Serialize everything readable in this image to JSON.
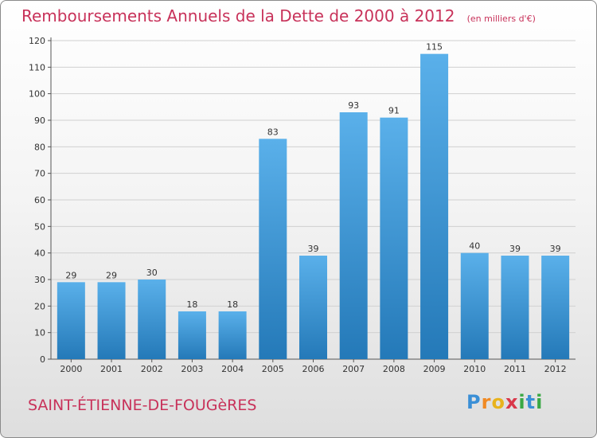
{
  "header": {
    "title": "Remboursements Annuels de la Dette de 2000 à 2012",
    "unit": "(en milliers d'€)"
  },
  "footer": {
    "place": "SAINT-ÉTIENNE-DE-FOUGèRES",
    "logo_letters": [
      "P",
      "r",
      "o",
      "x",
      "i",
      "t",
      "i"
    ],
    "logo_colors": [
      "#3a8fd6",
      "#f08a24",
      "#e8b31d",
      "#d9384a",
      "#3aa845",
      "#3a8fd6",
      "#3aa845"
    ]
  },
  "colors": {
    "bar_top": "#5ab0ea",
    "bar_bottom": "#2479b8",
    "grid": "#d0d0d0",
    "accent": "#c8325a"
  },
  "chart_data": {
    "type": "bar",
    "title": "Remboursements Annuels de la Dette de 2000 à 2012",
    "subtitle": "(en milliers d'€)",
    "categories": [
      "2000",
      "2001",
      "2002",
      "2003",
      "2004",
      "2005",
      "2006",
      "2007",
      "2008",
      "2009",
      "2010",
      "2011",
      "2012"
    ],
    "values": [
      29,
      29,
      30,
      18,
      18,
      83,
      39,
      93,
      91,
      115,
      40,
      39,
      39
    ],
    "ylim": [
      0,
      120
    ],
    "yticks": [
      0,
      10,
      20,
      30,
      40,
      50,
      60,
      70,
      80,
      90,
      100,
      110,
      120
    ],
    "grid": true,
    "xlabel": "",
    "ylabel": ""
  }
}
